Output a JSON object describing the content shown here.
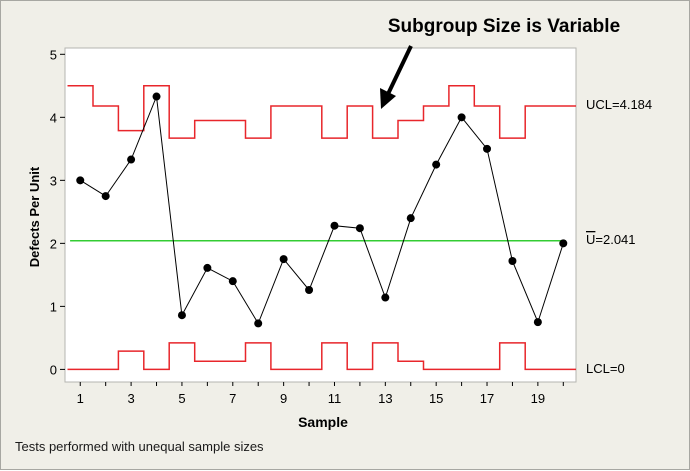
{
  "chart_data": {
    "type": "line",
    "title": "",
    "annotation": "Subgroup Size is Variable",
    "xlabel": "Sample",
    "ylabel": "Defects Per Unit",
    "x_ticks": [
      1,
      3,
      5,
      7,
      9,
      11,
      13,
      15,
      17,
      19
    ],
    "y_ticks": [
      0,
      1,
      2,
      3,
      4,
      5
    ],
    "xlim": [
      0.4,
      20.5
    ],
    "ylim": [
      -0.2,
      5.1
    ],
    "grid": false,
    "x": [
      1,
      2,
      3,
      4,
      5,
      6,
      7,
      8,
      9,
      10,
      11,
      12,
      13,
      14,
      15,
      16,
      17,
      18,
      19,
      20
    ],
    "series": [
      {
        "values": [
          3.0,
          2.75,
          3.33,
          4.33,
          0.86,
          1.61,
          1.4,
          0.73,
          1.75,
          1.26,
          2.28,
          2.24,
          1.14,
          2.4,
          3.25,
          4.0,
          3.5,
          1.72,
          0.75,
          2.0
        ],
        "color": "#000000"
      }
    ],
    "ucl": [
      4.5,
      4.18,
      3.79,
      4.5,
      3.67,
      3.95,
      3.95,
      3.67,
      4.18,
      4.18,
      3.67,
      4.18,
      3.67,
      3.95,
      4.18,
      4.5,
      4.18,
      3.67,
      4.18,
      4.18
    ],
    "lcl": [
      0,
      0,
      0.29,
      0,
      0.42,
      0.13,
      0.13,
      0.42,
      0,
      0,
      0.42,
      0,
      0.42,
      0.13,
      0,
      0,
      0,
      0.42,
      0,
      0
    ],
    "center_line": 2.041,
    "labels": {
      "ucl": "UCL=4.184",
      "center_symbol": "U",
      "center_value": "=2.041",
      "lcl": "LCL=0"
    },
    "colors": {
      "control_limits": "#e8262b",
      "center_line": "#33cc33",
      "data": "#000000"
    }
  },
  "footnote": "Tests performed with unequal sample sizes"
}
